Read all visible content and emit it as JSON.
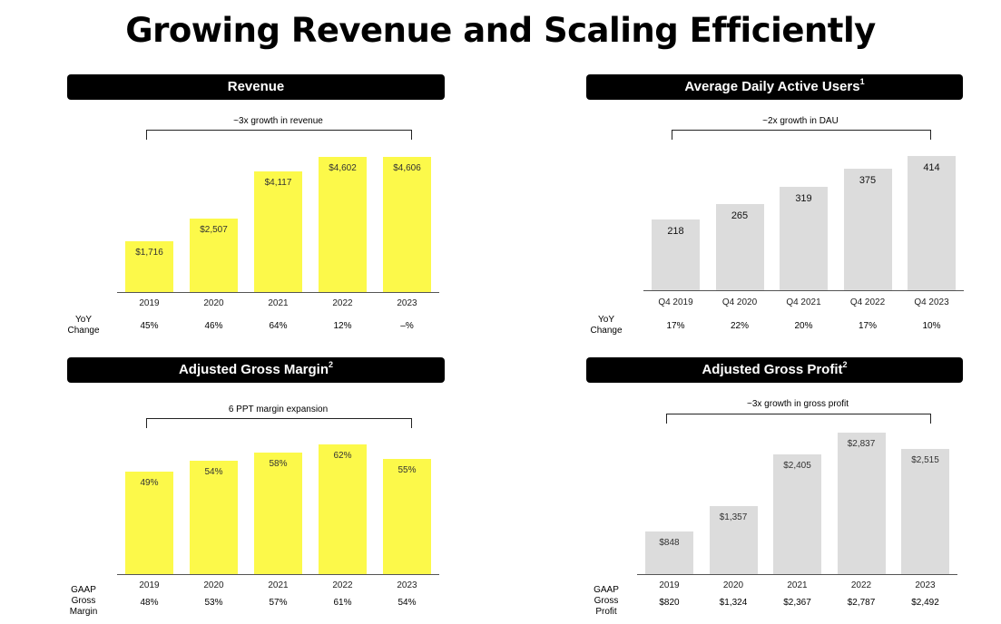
{
  "title": "Growing Revenue and Scaling Efficiently",
  "chart_data": [
    {
      "type": "bar",
      "title": "Revenue",
      "bracket_label": "~3x growth in revenue",
      "categories": [
        "2019",
        "2020",
        "2021",
        "2022",
        "2023"
      ],
      "values": [
        1716,
        2507,
        4117,
        4602,
        4606
      ],
      "value_labels": [
        "$1,716",
        "$2,507",
        "$4,117",
        "$4,602",
        "$4,606"
      ],
      "ylim": [
        0,
        5000
      ],
      "color": "#fcf94a",
      "row_label": [
        "YoY",
        "Change"
      ],
      "row_values": [
        "45%",
        "46%",
        "64%",
        "12%",
        "–%"
      ]
    },
    {
      "type": "bar",
      "title": "Average Daily Active Users",
      "title_sup": "1",
      "bracket_label": "~2x growth in DAU",
      "categories": [
        "Q4 2019",
        "Q4 2020",
        "Q4 2021",
        "Q4 2022",
        "Q4 2023"
      ],
      "values": [
        218,
        265,
        319,
        375,
        414
      ],
      "value_labels": [
        "218",
        "265",
        "319",
        "375",
        "414"
      ],
      "ylim": [
        0,
        450
      ],
      "color": "#dcdcdc",
      "row_label": [
        "YoY",
        "Change"
      ],
      "row_values": [
        "17%",
        "22%",
        "20%",
        "17%",
        "10%"
      ]
    },
    {
      "type": "bar",
      "title": "Adjusted Gross Margin",
      "title_sup": "2",
      "bracket_label": "6 PPT margin expansion",
      "categories": [
        "2019",
        "2020",
        "2021",
        "2022",
        "2023"
      ],
      "values": [
        49,
        54,
        58,
        62,
        55
      ],
      "value_labels": [
        "49%",
        "54%",
        "58%",
        "62%",
        "55%"
      ],
      "ylim": [
        0,
        70
      ],
      "color": "#fcf94a",
      "row_label": [
        "GAAP",
        "Gross",
        "Margin"
      ],
      "row_values": [
        "48%",
        "53%",
        "57%",
        "61%",
        "54%"
      ]
    },
    {
      "type": "bar",
      "title": "Adjusted Gross Profit",
      "title_sup": "2",
      "bracket_label": "~3x growth in gross profit",
      "categories": [
        "2019",
        "2020",
        "2021",
        "2022",
        "2023"
      ],
      "values": [
        848,
        1357,
        2405,
        2837,
        2515
      ],
      "value_labels": [
        "$848",
        "$1,357",
        "$2,405",
        "$2,837",
        "$2,515"
      ],
      "ylim": [
        0,
        3000
      ],
      "color": "#dcdcdc",
      "row_label": [
        "GAAP",
        "Gross",
        "Profit"
      ],
      "row_values": [
        "$820",
        "$1,324",
        "$2,367",
        "$2,787",
        "$2,492"
      ]
    }
  ]
}
